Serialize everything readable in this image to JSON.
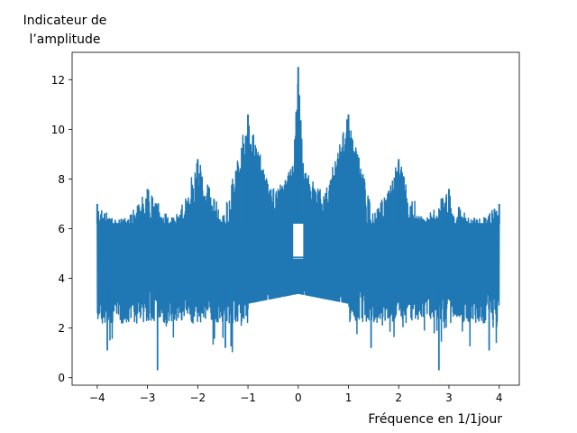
{
  "chart_data": {
    "type": "line",
    "title": "",
    "ylabel_line1": "Indicateur de",
    "ylabel_line2": "l’amplitude",
    "xlabel": "Fréquence en 1/1jour",
    "xlim": [
      -4.5,
      4.4
    ],
    "ylim": [
      -0.3,
      13.1
    ],
    "xticks": [
      -4,
      -3,
      -2,
      -1,
      0,
      1,
      2,
      3,
      4
    ],
    "xtick_labels": [
      "−4",
      "−3",
      "−2",
      "−1",
      "0",
      "1",
      "2",
      "3",
      "4"
    ],
    "yticks": [
      0,
      2,
      4,
      6,
      8,
      10,
      12
    ],
    "ytick_labels": [
      "0",
      "2",
      "4",
      "6",
      "8",
      "10",
      "12"
    ],
    "grid": false,
    "series": [
      {
        "color": "#1f77b4",
        "x_range": [
          -4.0,
          4.0
        ],
        "baseline_low": 3.6,
        "baseline_high": 6.2,
        "x": [
          -4.0,
          -3.5,
          -3.0,
          -2.5,
          -2.0,
          -1.5,
          -1.0,
          -0.5,
          -0.1,
          0.0,
          0.1,
          0.5,
          1.0,
          1.5,
          2.0,
          2.5,
          3.0,
          3.5,
          4.0
        ],
        "upper_envelope": [
          7.0,
          6.2,
          7.6,
          6.3,
          8.8,
          6.5,
          10.6,
          7.3,
          8.6,
          12.5,
          8.6,
          7.3,
          10.6,
          6.5,
          8.8,
          6.3,
          7.6,
          6.2,
          7.0
        ],
        "peaks": [
          {
            "x": -4.0,
            "y": 7.0
          },
          {
            "x": -3.0,
            "y": 7.6
          },
          {
            "x": -2.0,
            "y": 8.8
          },
          {
            "x": -1.0,
            "y": 10.6
          },
          {
            "x": 0.0,
            "y": 12.5
          },
          {
            "x": 1.0,
            "y": 10.6
          },
          {
            "x": 2.0,
            "y": 8.8
          },
          {
            "x": 3.0,
            "y": 7.6
          },
          {
            "x": 4.0,
            "y": 7.0
          }
        ],
        "dips": [
          {
            "x": -3.8,
            "y": 1.1
          },
          {
            "x": -2.8,
            "y": 0.3
          },
          {
            "x": -1.45,
            "y": 1.2
          },
          {
            "x": 1.45,
            "y": 1.2
          },
          {
            "x": 2.8,
            "y": 0.3
          },
          {
            "x": 3.8,
            "y": 1.1
          }
        ]
      }
    ]
  }
}
